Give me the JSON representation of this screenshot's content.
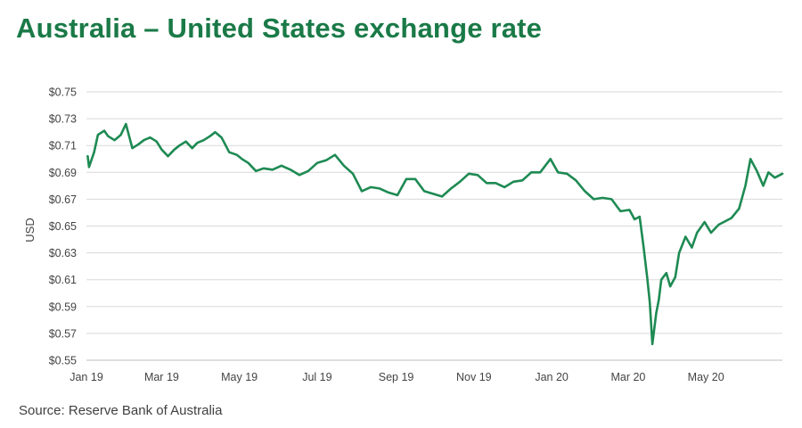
{
  "title": "Australia – United States exchange rate",
  "source": "Source: Reserve Bank of Australia",
  "colors": {
    "title": "#1a7a47",
    "line": "#1e8a53",
    "grid": "#d9d9d9"
  },
  "chart_data": {
    "type": "line",
    "title": "Australia – United States exchange rate",
    "xlabel": "",
    "ylabel": "USD",
    "ylim": [
      0.55,
      0.75
    ],
    "y_ticks": [
      0.55,
      0.57,
      0.59,
      0.61,
      0.63,
      0.65,
      0.67,
      0.69,
      0.71,
      0.73,
      0.75
    ],
    "y_tick_labels": [
      "$0.55",
      "$0.57",
      "$0.59",
      "$0.61",
      "$0.63",
      "$0.65",
      "$0.67",
      "$0.69",
      "$0.71",
      "$0.73",
      "$0.75"
    ],
    "x_tick_dates": [
      "2019-01-01",
      "2019-03-01",
      "2019-05-01",
      "2019-07-01",
      "2019-09-01",
      "2019-11-01",
      "2020-01-01",
      "2020-03-01",
      "2020-05-01"
    ],
    "x_tick_labels": [
      "Jan 19",
      "Mar 19",
      "May 19",
      "Jul 19",
      "Sep 19",
      "Nov 19",
      "Jan 20",
      "Mar 20",
      "May 20"
    ],
    "xlim": [
      "2019-01-01",
      "2020-06-30"
    ],
    "grid": "horizontal",
    "legend": "none",
    "series": [
      {
        "x": [
          "2019-01-02",
          "2019-01-03",
          "2019-01-07",
          "2019-01-10",
          "2019-01-15",
          "2019-01-18",
          "2019-01-23",
          "2019-01-28",
          "2019-02-01",
          "2019-02-06",
          "2019-02-11",
          "2019-02-15",
          "2019-02-20",
          "2019-02-25",
          "2019-03-01",
          "2019-03-06",
          "2019-03-11",
          "2019-03-15",
          "2019-03-20",
          "2019-03-25",
          "2019-03-29",
          "2019-04-03",
          "2019-04-08",
          "2019-04-12",
          "2019-04-17",
          "2019-04-23",
          "2019-04-29",
          "2019-05-03",
          "2019-05-08",
          "2019-05-14",
          "2019-05-20",
          "2019-05-27",
          "2019-06-03",
          "2019-06-10",
          "2019-06-17",
          "2019-06-24",
          "2019-07-01",
          "2019-07-08",
          "2019-07-15",
          "2019-07-22",
          "2019-07-29",
          "2019-08-05",
          "2019-08-12",
          "2019-08-19",
          "2019-08-26",
          "2019-09-02",
          "2019-09-09",
          "2019-09-16",
          "2019-09-23",
          "2019-09-30",
          "2019-10-07",
          "2019-10-14",
          "2019-10-21",
          "2019-10-28",
          "2019-11-04",
          "2019-11-11",
          "2019-11-18",
          "2019-11-25",
          "2019-12-02",
          "2019-12-09",
          "2019-12-16",
          "2019-12-23",
          "2019-12-31",
          "2020-01-06",
          "2020-01-13",
          "2020-01-20",
          "2020-01-27",
          "2020-02-03",
          "2020-02-10",
          "2020-02-17",
          "2020-02-24",
          "2020-03-02",
          "2020-03-06",
          "2020-03-10",
          "2020-03-13",
          "2020-03-16",
          "2020-03-18",
          "2020-03-19",
          "2020-03-20",
          "2020-03-23",
          "2020-03-25",
          "2020-03-27",
          "2020-03-31",
          "2020-04-03",
          "2020-04-07",
          "2020-04-10",
          "2020-04-15",
          "2020-04-20",
          "2020-04-24",
          "2020-04-30",
          "2020-05-05",
          "2020-05-11",
          "2020-05-15",
          "2020-05-21",
          "2020-05-27",
          "2020-06-01",
          "2020-06-05",
          "2020-06-10",
          "2020-06-15",
          "2020-06-19",
          "2020-06-24",
          "2020-06-30"
        ],
        "values": [
          0.702,
          0.694,
          0.705,
          0.718,
          0.721,
          0.717,
          0.714,
          0.718,
          0.726,
          0.708,
          0.711,
          0.714,
          0.716,
          0.713,
          0.707,
          0.702,
          0.707,
          0.71,
          0.713,
          0.708,
          0.712,
          0.714,
          0.717,
          0.72,
          0.716,
          0.705,
          0.703,
          0.7,
          0.697,
          0.691,
          0.693,
          0.692,
          0.695,
          0.692,
          0.688,
          0.691,
          0.697,
          0.699,
          0.703,
          0.695,
          0.689,
          0.676,
          0.679,
          0.678,
          0.675,
          0.673,
          0.685,
          0.685,
          0.676,
          0.674,
          0.672,
          0.678,
          0.683,
          0.689,
          0.688,
          0.682,
          0.682,
          0.679,
          0.683,
          0.684,
          0.69,
          0.69,
          0.7,
          0.69,
          0.689,
          0.684,
          0.676,
          0.67,
          0.671,
          0.67,
          0.661,
          0.662,
          0.655,
          0.657,
          0.635,
          0.611,
          0.593,
          0.577,
          0.562,
          0.585,
          0.595,
          0.61,
          0.615,
          0.605,
          0.612,
          0.63,
          0.642,
          0.634,
          0.645,
          0.653,
          0.645,
          0.651,
          0.653,
          0.656,
          0.663,
          0.68,
          0.7,
          0.691,
          0.68,
          0.69,
          0.686,
          0.689
        ]
      }
    ]
  }
}
